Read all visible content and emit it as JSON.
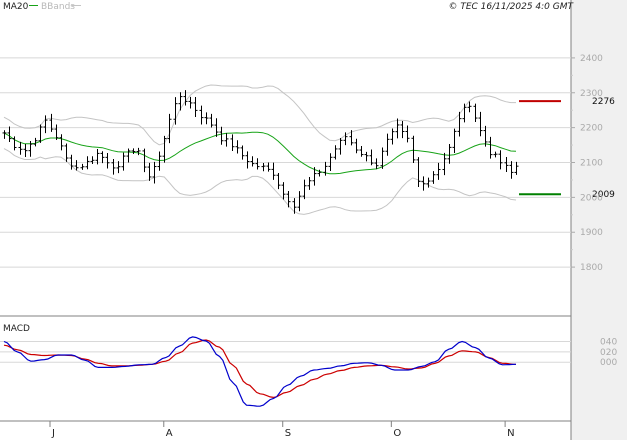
{
  "header": {
    "legend_ma": "MA20",
    "legend_bb": "BBands",
    "copyright": "© TEC 16/11/2025 4:0 GMT"
  },
  "colors": {
    "bars": "#000000",
    "ma": "#17a317",
    "bands": "#c4c4c4",
    "resistance": "#c00000",
    "support": "#008000",
    "macd": "#0000cc",
    "signal": "#cc0000",
    "grid": "#d8d8d8",
    "axis_panel": "#f0f0f0"
  },
  "chart_data": [
    {
      "type": "ohlc",
      "legend": [
        "MA20",
        "BBands"
      ],
      "y_ticks": [
        "2400",
        "2300",
        "2200",
        "2100",
        "2000",
        "1900",
        "1800"
      ],
      "y_tick_values": [
        2400,
        2300,
        2200,
        2100,
        2000,
        1900,
        1800
      ],
      "ylim": [
        1720,
        2480
      ],
      "x_months": [
        "J",
        "A",
        "S",
        "O",
        "N"
      ],
      "x_month_index": [
        0,
        22,
        45,
        66,
        88
      ],
      "n_bars": 100,
      "close_path": [
        2185,
        2150,
        2135,
        2170,
        2220,
        2175,
        2110,
        2085,
        2100,
        2125,
        2105,
        2080,
        2140,
        2125,
        2060,
        2115,
        2230,
        2290,
        2270,
        2235,
        2210,
        2170,
        2150,
        2120,
        2095,
        2085,
        2070,
        2010,
        1980,
        2030,
        2060,
        2090,
        2140,
        2175,
        2140,
        2115,
        2095,
        2160,
        2200,
        2165,
        2045,
        2050,
        2085,
        2140,
        2230,
        2270,
        2190,
        2130,
        2100,
        2070,
        2090,
        2110,
        2075,
        2080,
        2065,
        2115
      ],
      "close_points": [
        0,
        2,
        4,
        6,
        8,
        10,
        12,
        14,
        16,
        18,
        20,
        22,
        24,
        26,
        28,
        30,
        32,
        34,
        36,
        38,
        40,
        42,
        44,
        46,
        48,
        50,
        52,
        54,
        56,
        58,
        60,
        62,
        64,
        66,
        68,
        70,
        72,
        74,
        76,
        78,
        80,
        82,
        84,
        86,
        88,
        90,
        92,
        94,
        96,
        98,
        99,
        100,
        101,
        102,
        103,
        104
      ],
      "levels": [
        {
          "label": "2276",
          "value": 2276,
          "role": "resistance"
        },
        {
          "label": "2009",
          "value": 2009,
          "role": "support"
        }
      ]
    },
    {
      "type": "line",
      "name": "MACD",
      "y_ticks": [
        "040",
        "020",
        "000"
      ],
      "y_tick_values": [
        40,
        20,
        0
      ],
      "ylim": [
        -100,
        70
      ],
      "macd": [
        40,
        20,
        2,
        5,
        14,
        14,
        4,
        -10,
        -10,
        -8,
        -5,
        -4,
        9,
        31,
        49,
        41,
        11,
        -40,
        -83,
        -85,
        -70,
        -45,
        -27,
        -15,
        -12,
        -7,
        -2,
        -1,
        -6,
        -15,
        -15,
        -8,
        1,
        25,
        40,
        28,
        8,
        -5,
        -4
      ],
      "signal": [
        33,
        24,
        15,
        13,
        14,
        13,
        6,
        -2,
        -7,
        -7,
        -6,
        -4,
        2,
        18,
        37,
        43,
        29,
        -6,
        -42,
        -61,
        -68,
        -58,
        -45,
        -33,
        -23,
        -16,
        -10,
        -7,
        -6,
        -9,
        -13,
        -11,
        -2,
        12,
        22,
        20,
        9,
        -2,
        -4
      ]
    }
  ]
}
